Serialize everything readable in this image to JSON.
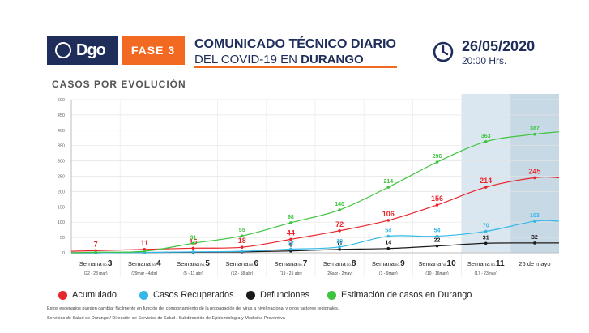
{
  "header": {
    "logo_text": "Dgo",
    "phase": "FASE 3",
    "title_line1": "COMUNICADO TÉCNICO DIARIO",
    "title_line2_prefix": "DEL COVID-19 EN ",
    "title_line2_bold": "DURANGO",
    "date": "26/05/2020",
    "time": "20:00 Hrs."
  },
  "section_title": "CASOS POR EVOLUCIÓN",
  "chart_data": {
    "type": "line",
    "title": "CASOS POR EVOLUCIÓN",
    "ylim": [
      0,
      500
    ],
    "yticks": [
      0,
      50,
      100,
      150,
      200,
      250,
      300,
      350,
      400,
      450,
      500
    ],
    "grid": true,
    "categories": [
      {
        "week": "Semana",
        "sub": "no.",
        "num": "3",
        "range": "(22 - 28 mar)"
      },
      {
        "week": "Semana",
        "sub": "no.",
        "num": "4",
        "range": "(29mar - 4abr)"
      },
      {
        "week": "Semana",
        "sub": "no.",
        "num": "5",
        "range": "(5 - 11 abr)"
      },
      {
        "week": "Semana",
        "sub": "no.",
        "num": "6",
        "range": "(12 - 18 abr)"
      },
      {
        "week": "Semana",
        "sub": "no.",
        "num": "7",
        "range": "(19 - 25 abr)"
      },
      {
        "week": "Semana",
        "sub": "no.",
        "num": "8",
        "range": "(26abr - 2may)"
      },
      {
        "week": "Semana",
        "sub": "no.",
        "num": "9",
        "range": "(3 - 9may)"
      },
      {
        "week": "Semana",
        "sub": "no.",
        "num": "10",
        "range": "(10 - 16may)"
      },
      {
        "week": "Semana",
        "sub": "no.",
        "num": "11",
        "range": "(17 - 23may)"
      },
      {
        "week": "26 de mayo",
        "sub": "",
        "num": "",
        "range": ""
      }
    ],
    "highlighted_categories": [
      8,
      9
    ],
    "series": [
      {
        "name": "Acumulado",
        "color": "#e8262d",
        "values": [
          7,
          11,
          15,
          18,
          44,
          72,
          106,
          156,
          214,
          245
        ]
      },
      {
        "name": "Casos Recuperados",
        "color": "#33b8e8",
        "values": [
          0,
          1,
          3,
          5,
          12,
          19,
          54,
          54,
          70,
          103
        ]
      },
      {
        "name": "Defunciones",
        "color": "#1a1a1a",
        "values": [
          0,
          1,
          2,
          3,
          6,
          11,
          14,
          22,
          31,
          32
        ]
      },
      {
        "name": "Estimación de casos en Durango",
        "color": "#3ec43e",
        "values": [
          2,
          5,
          31,
          55,
          98,
          140,
          214,
          296,
          363,
          387
        ]
      }
    ],
    "point_labels": [
      {
        "series": 0,
        "labels": [
          "7",
          "11",
          "15",
          "18",
          "44",
          "72",
          "106",
          "156",
          "214",
          "245"
        ]
      },
      {
        "series": 1,
        "labels": [
          "",
          "",
          "",
          "",
          "12",
          "19",
          "54",
          "54",
          "70",
          "103"
        ]
      },
      {
        "series": 2,
        "labels": [
          "",
          "",
          "",
          "",
          "6",
          "11",
          "14",
          "22",
          "31",
          "32"
        ]
      },
      {
        "series": 3,
        "labels": [
          "",
          "",
          "31",
          "55",
          "98",
          "140",
          "214",
          "296",
          "363",
          "387"
        ]
      }
    ]
  },
  "legend": [
    {
      "label": "Acumulado",
      "color": "#e8262d"
    },
    {
      "label": "Casos Recuperados",
      "color": "#33b8e8"
    },
    {
      "label": "Defunciones",
      "color": "#1a1a1a"
    },
    {
      "label": "Estimación de casos en Durango",
      "color": "#3ec43e"
    }
  ],
  "footer": {
    "note": "Estos escenarios pueden cambiar fácilmente en función del comportamiento de la propagación del virus a nivel nacional y otros factores regionales.",
    "source": "Servicios de Salud de Durango / Dirección de Servicios de Salud / Subdirección de Epidemiología y Medicina Preventiva"
  }
}
